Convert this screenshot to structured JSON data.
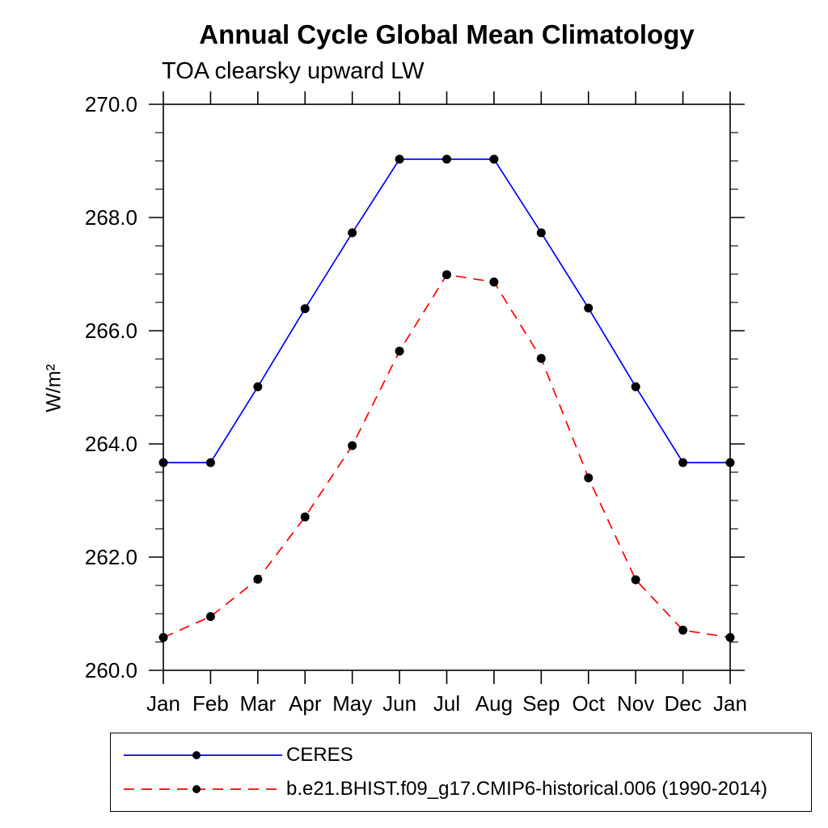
{
  "chart_data": {
    "type": "line",
    "title": "Annual Cycle Global Mean Climatology",
    "subtitle": "TOA clearsky upward LW",
    "ylabel": "W/m²",
    "categories": [
      "Jan",
      "Feb",
      "Mar",
      "Apr",
      "May",
      "Jun",
      "Jul",
      "Aug",
      "Sep",
      "Oct",
      "Nov",
      "Dec",
      "Jan"
    ],
    "ylim": [
      260.0,
      270.0
    ],
    "yticks": [
      {
        "value": 260.0,
        "label": "260.0"
      },
      {
        "value": 262.0,
        "label": "262.0"
      },
      {
        "value": 264.0,
        "label": "264.0"
      },
      {
        "value": 266.0,
        "label": "266.0"
      },
      {
        "value": 268.0,
        "label": "268.0"
      },
      {
        "value": 270.0,
        "label": "270.0"
      }
    ],
    "ytick_minor_step": 0.5,
    "grid": false,
    "legend_position": "bottom-left",
    "marker": "filled-circle",
    "marker_color": "#000000",
    "frame_color": "#000000",
    "background_color": "#ffffff",
    "series": [
      {
        "id": "ceres",
        "name": "CERES",
        "color": "#0000ff",
        "line_style": "solid",
        "values": [
          263.67,
          263.67,
          265.01,
          266.39,
          267.73,
          269.03,
          269.03,
          269.03,
          267.73,
          266.4,
          265.01,
          263.67,
          263.67
        ]
      },
      {
        "id": "model",
        "name": "b.e21.BHIST.f09_g17.CMIP6-historical.006 (1990-2014)",
        "color": "#ff0000",
        "line_style": "dashed",
        "values": [
          260.58,
          260.95,
          261.61,
          262.71,
          263.97,
          265.64,
          266.99,
          266.86,
          265.51,
          263.4,
          261.6,
          260.71,
          260.58
        ]
      }
    ]
  }
}
